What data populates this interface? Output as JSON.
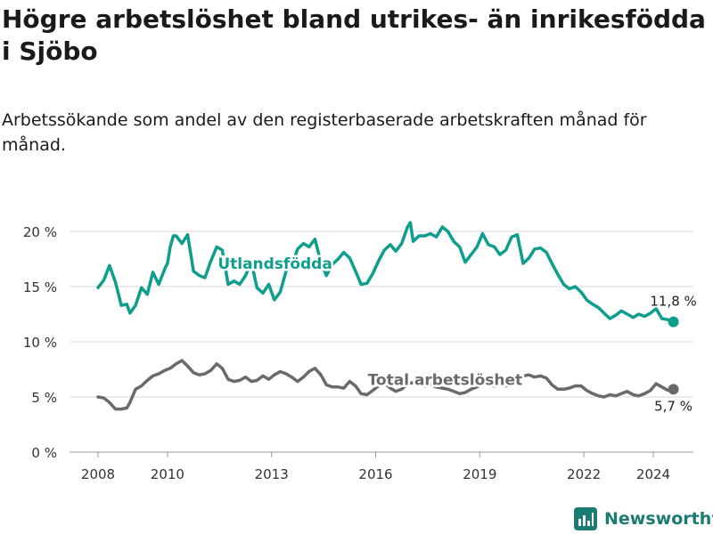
{
  "header": {
    "title": "Högre arbetslöshet bland utrikes- än inrikesfödda i Sjöbo",
    "subtitle": "Arbetssökande som andel av den registerbaserade arbetskraften månad för månad."
  },
  "footer": {
    "brand": "Newsworthy"
  },
  "colors": {
    "foreign_born": "#0e9e8e",
    "total": "#6a6a6d",
    "grid": "#d9d9d9",
    "brand": "#1b7b73"
  },
  "chart_data": {
    "type": "line",
    "title": "Högre arbetslöshet bland utrikes- än inrikesfödda i Sjöbo",
    "subtitle": "Arbetssökande som andel av den registerbaserade arbetskraften månad för månad.",
    "xlabel": "",
    "ylabel": "",
    "ylim": [
      0,
      21
    ],
    "y_ticks": [
      0,
      5,
      10,
      15,
      20
    ],
    "y_tick_labels": [
      "0 %",
      "5 %",
      "10 %",
      "15 %",
      "20 %"
    ],
    "x_ticks": [
      2008,
      2010,
      2013,
      2016,
      2019,
      2022,
      2024
    ],
    "x_tick_labels": [
      "2008",
      "2010",
      "2013",
      "2016",
      "2019",
      "2022",
      "2024"
    ],
    "xlim": [
      2007.5,
      2025.2
    ],
    "grid": "horizontal",
    "legend": "inline labels",
    "series": [
      {
        "name": "Utlandsfödda",
        "color": "#0e9e8e",
        "end_label": "11,8 %",
        "points": [
          [
            2008.0,
            14.9
          ],
          [
            2008.17,
            15.6
          ],
          [
            2008.33,
            16.9
          ],
          [
            2008.5,
            15.4
          ],
          [
            2008.67,
            13.3
          ],
          [
            2008.83,
            13.4
          ],
          [
            2008.92,
            12.6
          ],
          [
            2009.08,
            13.3
          ],
          [
            2009.25,
            14.9
          ],
          [
            2009.42,
            14.3
          ],
          [
            2009.58,
            16.3
          ],
          [
            2009.75,
            15.2
          ],
          [
            2009.92,
            16.6
          ],
          [
            2010.0,
            17.1
          ],
          [
            2010.08,
            18.6
          ],
          [
            2010.17,
            19.6
          ],
          [
            2010.25,
            19.6
          ],
          [
            2010.42,
            18.9
          ],
          [
            2010.58,
            19.7
          ],
          [
            2010.75,
            16.4
          ],
          [
            2010.92,
            16.0
          ],
          [
            2011.08,
            15.8
          ],
          [
            2011.25,
            17.3
          ],
          [
            2011.42,
            18.6
          ],
          [
            2011.58,
            18.3
          ],
          [
            2011.75,
            15.2
          ],
          [
            2011.92,
            15.5
          ],
          [
            2012.08,
            15.2
          ],
          [
            2012.25,
            16.0
          ],
          [
            2012.42,
            17.2
          ],
          [
            2012.58,
            14.9
          ],
          [
            2012.75,
            14.4
          ],
          [
            2012.92,
            15.2
          ],
          [
            2013.08,
            13.8
          ],
          [
            2013.25,
            14.5
          ],
          [
            2013.42,
            16.4
          ],
          [
            2013.58,
            16.9
          ],
          [
            2013.75,
            18.4
          ],
          [
            2013.92,
            18.9
          ],
          [
            2014.08,
            18.6
          ],
          [
            2014.25,
            19.3
          ],
          [
            2014.42,
            17.2
          ],
          [
            2014.58,
            16.0
          ],
          [
            2014.75,
            17.0
          ],
          [
            2014.92,
            17.5
          ],
          [
            2015.08,
            18.1
          ],
          [
            2015.25,
            17.6
          ],
          [
            2015.42,
            16.4
          ],
          [
            2015.58,
            15.2
          ],
          [
            2015.75,
            15.3
          ],
          [
            2015.92,
            16.2
          ],
          [
            2016.08,
            17.3
          ],
          [
            2016.25,
            18.3
          ],
          [
            2016.42,
            18.8
          ],
          [
            2016.58,
            18.2
          ],
          [
            2016.75,
            18.9
          ],
          [
            2016.92,
            20.4
          ],
          [
            2017.0,
            20.8
          ],
          [
            2017.08,
            19.1
          ],
          [
            2017.25,
            19.6
          ],
          [
            2017.42,
            19.6
          ],
          [
            2017.58,
            19.8
          ],
          [
            2017.75,
            19.5
          ],
          [
            2017.92,
            20.4
          ],
          [
            2018.08,
            20.0
          ],
          [
            2018.25,
            19.1
          ],
          [
            2018.42,
            18.6
          ],
          [
            2018.58,
            17.2
          ],
          [
            2018.75,
            17.9
          ],
          [
            2018.92,
            18.6
          ],
          [
            2019.08,
            19.8
          ],
          [
            2019.25,
            18.8
          ],
          [
            2019.42,
            18.6
          ],
          [
            2019.58,
            17.9
          ],
          [
            2019.75,
            18.3
          ],
          [
            2019.92,
            19.5
          ],
          [
            2020.08,
            19.7
          ],
          [
            2020.25,
            17.1
          ],
          [
            2020.42,
            17.6
          ],
          [
            2020.58,
            18.4
          ],
          [
            2020.75,
            18.5
          ],
          [
            2020.92,
            18.1
          ],
          [
            2021.08,
            17.1
          ],
          [
            2021.25,
            16.1
          ],
          [
            2021.42,
            15.2
          ],
          [
            2021.58,
            14.8
          ],
          [
            2021.75,
            15.0
          ],
          [
            2021.92,
            14.5
          ],
          [
            2022.08,
            13.8
          ],
          [
            2022.25,
            13.4
          ],
          [
            2022.42,
            13.1
          ],
          [
            2022.58,
            12.6
          ],
          [
            2022.75,
            12.1
          ],
          [
            2022.92,
            12.4
          ],
          [
            2023.08,
            12.8
          ],
          [
            2023.25,
            12.5
          ],
          [
            2023.42,
            12.2
          ],
          [
            2023.58,
            12.5
          ],
          [
            2023.75,
            12.3
          ],
          [
            2023.92,
            12.6
          ],
          [
            2024.08,
            13.0
          ],
          [
            2024.25,
            12.1
          ],
          [
            2024.42,
            12.0
          ],
          [
            2024.58,
            11.8
          ]
        ]
      },
      {
        "name": "Total arbetslöshet",
        "color": "#6a6a6d",
        "end_label": "5,7 %",
        "points": [
          [
            2008.0,
            5.0
          ],
          [
            2008.17,
            4.9
          ],
          [
            2008.33,
            4.5
          ],
          [
            2008.5,
            3.9
          ],
          [
            2008.67,
            3.9
          ],
          [
            2008.83,
            4.0
          ],
          [
            2008.92,
            4.5
          ],
          [
            2009.08,
            5.7
          ],
          [
            2009.25,
            6.0
          ],
          [
            2009.42,
            6.5
          ],
          [
            2009.58,
            6.9
          ],
          [
            2009.75,
            7.1
          ],
          [
            2009.92,
            7.4
          ],
          [
            2010.08,
            7.6
          ],
          [
            2010.25,
            8.0
          ],
          [
            2010.42,
            8.3
          ],
          [
            2010.58,
            7.8
          ],
          [
            2010.75,
            7.2
          ],
          [
            2010.92,
            7.0
          ],
          [
            2011.08,
            7.1
          ],
          [
            2011.25,
            7.4
          ],
          [
            2011.42,
            8.0
          ],
          [
            2011.58,
            7.6
          ],
          [
            2011.75,
            6.6
          ],
          [
            2011.92,
            6.4
          ],
          [
            2012.08,
            6.5
          ],
          [
            2012.25,
            6.8
          ],
          [
            2012.42,
            6.4
          ],
          [
            2012.58,
            6.5
          ],
          [
            2012.75,
            6.9
          ],
          [
            2012.92,
            6.6
          ],
          [
            2013.08,
            7.0
          ],
          [
            2013.25,
            7.3
          ],
          [
            2013.42,
            7.1
          ],
          [
            2013.58,
            6.8
          ],
          [
            2013.75,
            6.4
          ],
          [
            2013.92,
            6.8
          ],
          [
            2014.08,
            7.3
          ],
          [
            2014.25,
            7.6
          ],
          [
            2014.42,
            7.0
          ],
          [
            2014.58,
            6.1
          ],
          [
            2014.75,
            5.9
          ],
          [
            2014.92,
            5.9
          ],
          [
            2015.08,
            5.8
          ],
          [
            2015.25,
            6.4
          ],
          [
            2015.42,
            6.0
          ],
          [
            2015.58,
            5.3
          ],
          [
            2015.75,
            5.2
          ],
          [
            2015.92,
            5.6
          ],
          [
            2016.08,
            6.0
          ],
          [
            2016.25,
            6.3
          ],
          [
            2016.42,
            5.8
          ],
          [
            2016.58,
            5.5
          ],
          [
            2016.75,
            5.7
          ],
          [
            2016.92,
            6.2
          ],
          [
            2017.08,
            6.3
          ],
          [
            2017.25,
            6.2
          ],
          [
            2017.42,
            6.0
          ],
          [
            2017.58,
            6.1
          ],
          [
            2017.75,
            5.9
          ],
          [
            2017.92,
            5.8
          ],
          [
            2018.08,
            5.7
          ],
          [
            2018.25,
            5.5
          ],
          [
            2018.42,
            5.3
          ],
          [
            2018.58,
            5.4
          ],
          [
            2018.75,
            5.7
          ],
          [
            2018.92,
            5.9
          ],
          [
            2019.08,
            6.2
          ],
          [
            2019.25,
            6.1
          ],
          [
            2019.42,
            6.0
          ],
          [
            2019.58,
            6.1
          ],
          [
            2019.75,
            6.0
          ],
          [
            2019.92,
            6.2
          ],
          [
            2020.08,
            6.5
          ],
          [
            2020.25,
            6.9
          ],
          [
            2020.42,
            7.0
          ],
          [
            2020.58,
            6.8
          ],
          [
            2020.75,
            6.9
          ],
          [
            2020.92,
            6.7
          ],
          [
            2021.08,
            6.1
          ],
          [
            2021.25,
            5.7
          ],
          [
            2021.42,
            5.7
          ],
          [
            2021.58,
            5.8
          ],
          [
            2021.75,
            6.0
          ],
          [
            2021.92,
            6.0
          ],
          [
            2022.08,
            5.6
          ],
          [
            2022.25,
            5.3
          ],
          [
            2022.42,
            5.1
          ],
          [
            2022.58,
            5.0
          ],
          [
            2022.75,
            5.2
          ],
          [
            2022.92,
            5.1
          ],
          [
            2023.08,
            5.3
          ],
          [
            2023.25,
            5.5
          ],
          [
            2023.42,
            5.2
          ],
          [
            2023.58,
            5.1
          ],
          [
            2023.75,
            5.3
          ],
          [
            2023.92,
            5.6
          ],
          [
            2024.08,
            6.2
          ],
          [
            2024.25,
            5.9
          ],
          [
            2024.42,
            5.6
          ],
          [
            2024.58,
            5.7
          ]
        ]
      }
    ]
  }
}
